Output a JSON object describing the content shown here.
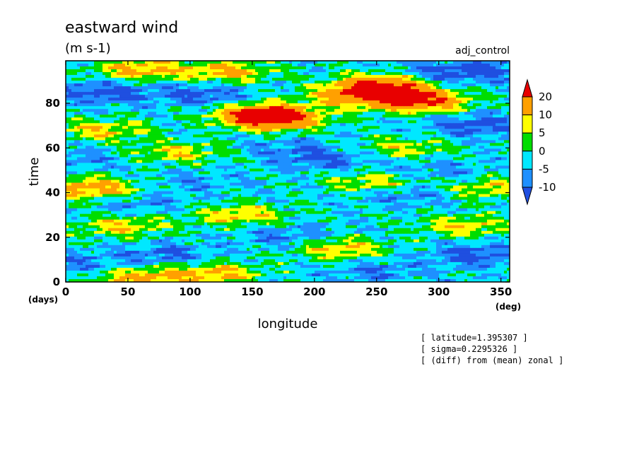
{
  "figure": {
    "title": "eastward wind",
    "units": "(m s-1)",
    "experiment": "adj_control",
    "notes": [
      "[ latitude=1.395307 ]",
      "[ sigma=0.2295326 ]",
      "[ (diff) from (mean) zonal ]"
    ]
  },
  "chart_data": {
    "type": "heatmap",
    "xlabel": "longitude",
    "xunit": "(deg)",
    "ylabel": "time",
    "yunit": "(days)",
    "xlim": [
      0,
      357
    ],
    "ylim": [
      0,
      99
    ],
    "xticks": [
      0,
      50,
      100,
      150,
      200,
      250,
      300,
      350
    ],
    "yticks": [
      0,
      20,
      40,
      60,
      80
    ],
    "colorbar": {
      "levels": [
        -10,
        -5,
        0,
        5,
        10,
        20
      ],
      "colors": [
        "#1f4fe0",
        "#1e90ff",
        "#00e8ff",
        "#00dd00",
        "#ffff00",
        "#ffa000",
        "#e80000"
      ],
      "extend": "both",
      "position": "right"
    },
    "features": [
      {
        "lon": 160,
        "time": 75,
        "value": 22
      },
      {
        "lon": 255,
        "time": 88,
        "value": 22
      },
      {
        "lon": 285,
        "time": 81,
        "value": 21
      },
      {
        "lon": 235,
        "time": 83,
        "value": 14
      },
      {
        "lon": 60,
        "time": 95,
        "value": 12
      },
      {
        "lon": 130,
        "time": 94,
        "value": 11
      },
      {
        "lon": 170,
        "time": 72,
        "value": 12
      },
      {
        "lon": 30,
        "time": 68,
        "value": 9
      },
      {
        "lon": 250,
        "time": 44,
        "value": 10
      },
      {
        "lon": 220,
        "time": 15,
        "value": 11
      },
      {
        "lon": 120,
        "time": 4,
        "value": 11
      },
      {
        "lon": 45,
        "time": 25,
        "value": 9
      },
      {
        "lon": 140,
        "time": 30,
        "value": 10
      },
      {
        "lon": 320,
        "time": 25,
        "value": 9
      },
      {
        "lon": 340,
        "time": 42,
        "value": 8
      },
      {
        "lon": 60,
        "time": 2,
        "value": 12
      },
      {
        "lon": 20,
        "time": 42,
        "value": 15
      },
      {
        "lon": 90,
        "time": 58,
        "value": 8
      },
      {
        "lon": 270,
        "time": 60,
        "value": 7
      },
      {
        "lon": 30,
        "time": 85,
        "value": -13
      },
      {
        "lon": 110,
        "time": 84,
        "value": -12
      },
      {
        "lon": 330,
        "time": 70,
        "value": -13
      },
      {
        "lon": 300,
        "time": 93,
        "value": -11
      },
      {
        "lon": 210,
        "time": 55,
        "value": -11
      },
      {
        "lon": 270,
        "time": 40,
        "value": -12
      },
      {
        "lon": 80,
        "time": 12,
        "value": -11
      },
      {
        "lon": 180,
        "time": 20,
        "value": -10
      },
      {
        "lon": 330,
        "time": 12,
        "value": -12
      },
      {
        "lon": 10,
        "time": 8,
        "value": -9
      },
      {
        "lon": 250,
        "time": 5,
        "value": -9
      },
      {
        "lon": 340,
        "time": 95,
        "value": -10
      },
      {
        "lon": 180,
        "time": 60,
        "value": -8
      },
      {
        "lon": 100,
        "time": 45,
        "value": -7
      },
      {
        "lon": 60,
        "time": 35,
        "value": -8
      },
      {
        "lon": 300,
        "time": 50,
        "value": -8
      },
      {
        "lon": 10,
        "time": 55,
        "value": -8
      }
    ]
  }
}
